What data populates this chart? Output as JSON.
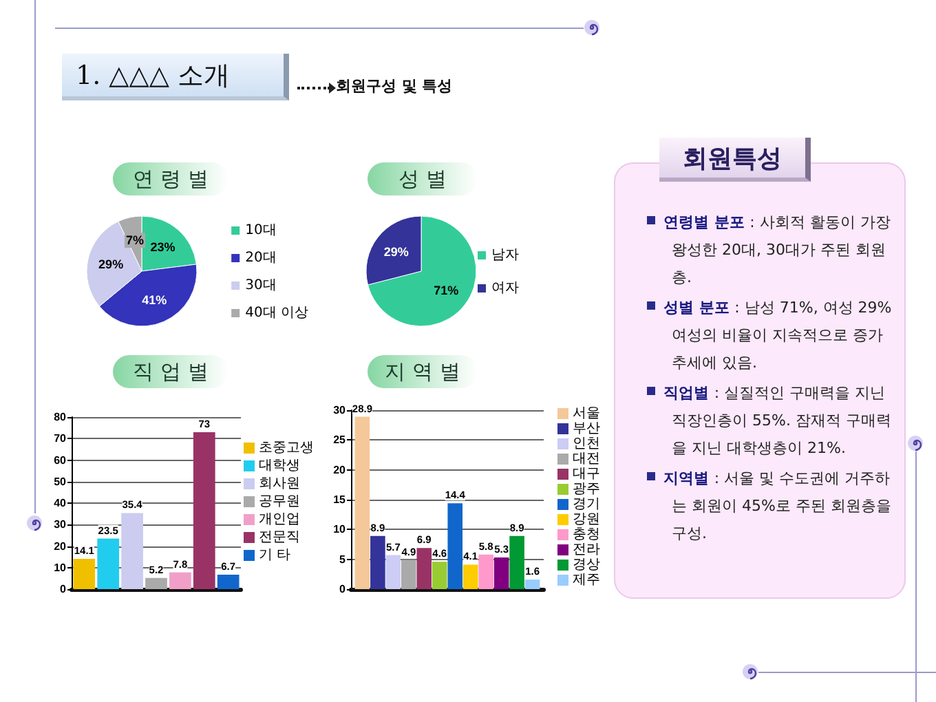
{
  "chart_data": [
    {
      "type": "other",
      "title": "1. △△△ 소개",
      "subtitle": "회원구성 및 특성"
    },
    {
      "type": "pie",
      "title": "연 령 별",
      "categories": [
        "10대",
        "20대",
        "30대",
        "40대 이상"
      ],
      "values": [
        23,
        41,
        29,
        7
      ],
      "colors": [
        "#33cc99",
        "#3333bb",
        "#ccccee",
        "#aaaaaa"
      ],
      "value_labels": [
        "23%",
        "41%",
        "29%",
        "7%"
      ],
      "legend": "right"
    },
    {
      "type": "pie",
      "title": "성 별",
      "categories": [
        "남자",
        "여자"
      ],
      "values": [
        71,
        29
      ],
      "colors": [
        "#33cc99",
        "#333399"
      ],
      "value_labels": [
        "71%",
        "29%"
      ],
      "legend": "right"
    },
    {
      "type": "bar",
      "title": "직 업 별",
      "categories": [
        null
      ],
      "series": [
        {
          "name": "초중고생",
          "color": "#f0c000",
          "values": [
            14.1
          ]
        },
        {
          "name": "대학생",
          "color": "#22ccee",
          "values": [
            23.5
          ]
        },
        {
          "name": "회사원",
          "color": "#ccccf0",
          "values": [
            35.4
          ]
        },
        {
          "name": "공무원",
          "color": "#aaaaaa",
          "values": [
            5.2
          ]
        },
        {
          "name": "개인업",
          "color": "#f0a0c8",
          "values": [
            7.8
          ]
        },
        {
          "name": "전문직",
          "color": "#993366",
          "values": [
            73
          ]
        },
        {
          "name": "기 타",
          "color": "#1166cc",
          "values": [
            6.7
          ]
        }
      ],
      "ylim": [
        0,
        80
      ],
      "yticks": [
        0,
        10,
        20,
        30,
        40,
        50,
        60,
        70,
        80
      ],
      "grid": "y",
      "legend": "right",
      "tick_labels": "y",
      "data_labels": true
    },
    {
      "type": "bar",
      "title": "지 역 별",
      "categories": [
        null
      ],
      "series": [
        {
          "name": "서울",
          "color": "#f5c89a",
          "values": [
            28.9
          ]
        },
        {
          "name": "부산",
          "color": "#333399",
          "values": [
            8.9
          ]
        },
        {
          "name": "인천",
          "color": "#ccccf5",
          "values": [
            5.7
          ]
        },
        {
          "name": "대전",
          "color": "#aaaaaa",
          "values": [
            4.9
          ]
        },
        {
          "name": "대구",
          "color": "#993366",
          "values": [
            6.9
          ]
        },
        {
          "name": "광주",
          "color": "#99cc33",
          "values": [
            4.6
          ]
        },
        {
          "name": "경기",
          "color": "#1166cc",
          "values": [
            14.4
          ]
        },
        {
          "name": "강원",
          "color": "#ffcc00",
          "values": [
            4.1
          ]
        },
        {
          "name": "충청",
          "color": "#ff99cc",
          "values": [
            5.8
          ]
        },
        {
          "name": "전라",
          "color": "#800080",
          "values": [
            5.3
          ]
        },
        {
          "name": "경상",
          "color": "#009933",
          "values": [
            8.9
          ]
        },
        {
          "name": "제주",
          "color": "#99ccff",
          "values": [
            1.6
          ]
        }
      ],
      "ylim": [
        0,
        30
      ],
      "yticks": [
        0,
        5,
        10,
        15,
        20,
        25,
        30
      ],
      "grid": "y",
      "legend": "right",
      "tick_labels": "y",
      "data_labels": true
    },
    {
      "type": "other",
      "title": "회원특성",
      "annotations": [
        "연령별 분포 : 사회적 활동이 가장 왕성한 20대, 30대가 주된 회원층.",
        "성별 분포 : 남성 71%, 여성 29% 여성의 비율이 지속적으로 증가 추세에 있음.",
        "직업별 : 실질적인 구매력을 지닌 직장인층이 55%. 잠재적 구매력을 지닌 대학생층이 21%.",
        "지역별 : 서울 및 수도권에 거주하는 회원이 45%로 주된 회원층을 구성."
      ]
    }
  ]
}
